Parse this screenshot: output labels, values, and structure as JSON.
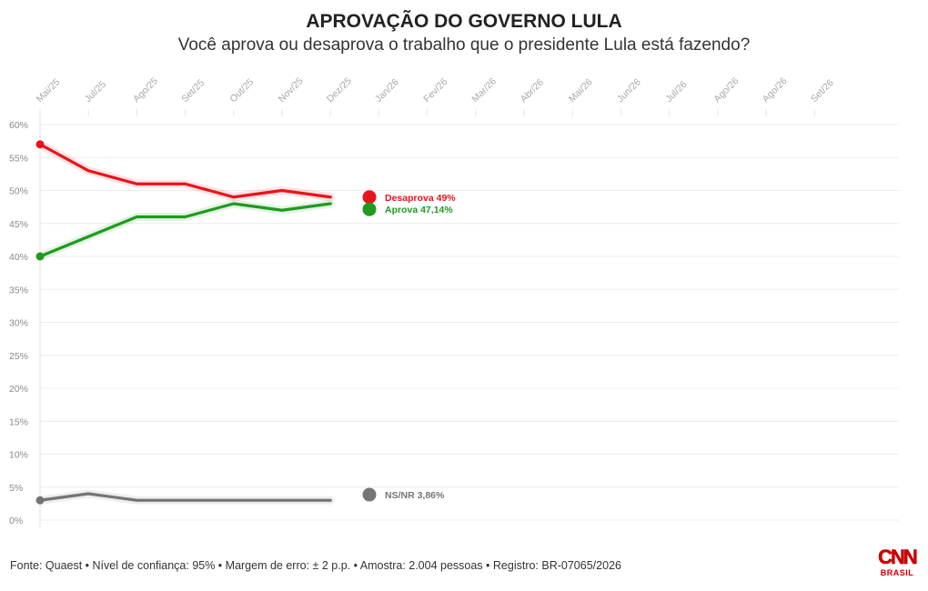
{
  "title": "APROVAÇÃO DO GOVERNO LULA",
  "subtitle": "Você aprova ou desaprova o trabalho que o presidente Lula está fazendo?",
  "footer": "Fonte: Quaest • Nível de confiança: 95% • Margem de erro: ± 2 p.p. • Amostra: 2.004 pessoas • Registro: BR-07065/2026",
  "logo": {
    "text": "CNN",
    "subtext": "BRASIL",
    "color": "#cc0000"
  },
  "chart_data": {
    "type": "line",
    "x_ticks": [
      "Mai/25",
      "Jul/25",
      "Ago/25",
      "Set/25",
      "Out/25",
      "Nov/25",
      "Dez/25",
      "Jan/26",
      "Fev/26",
      "Mar/26",
      "Abr/26",
      "Mai/26",
      "Jun/26",
      "Jul/26",
      "Ago/26",
      "Ago/26",
      "Set/26"
    ],
    "y_ticks": [
      "0%",
      "5%",
      "10%",
      "15%",
      "20%",
      "25%",
      "30%",
      "35%",
      "40%",
      "45%",
      "50%",
      "55%",
      "60%"
    ],
    "ylim": [
      0,
      60
    ],
    "grid": true,
    "series": [
      {
        "name": "Desaprova",
        "label": "Desaprova 49%",
        "color": "#e8141b",
        "values": [
          57,
          53,
          51,
          51,
          49,
          50,
          49,
          49
        ]
      },
      {
        "name": "Aprova",
        "label": "Aprova 47,14%",
        "color": "#1e9b1e",
        "values": [
          40,
          43,
          46,
          46,
          48,
          47,
          48,
          47.14
        ]
      },
      {
        "name": "NS/NR",
        "label": "NS/NR 3,86%",
        "color": "#757575",
        "values": [
          3,
          4,
          3,
          3,
          3,
          3,
          3,
          3.86
        ]
      }
    ]
  }
}
